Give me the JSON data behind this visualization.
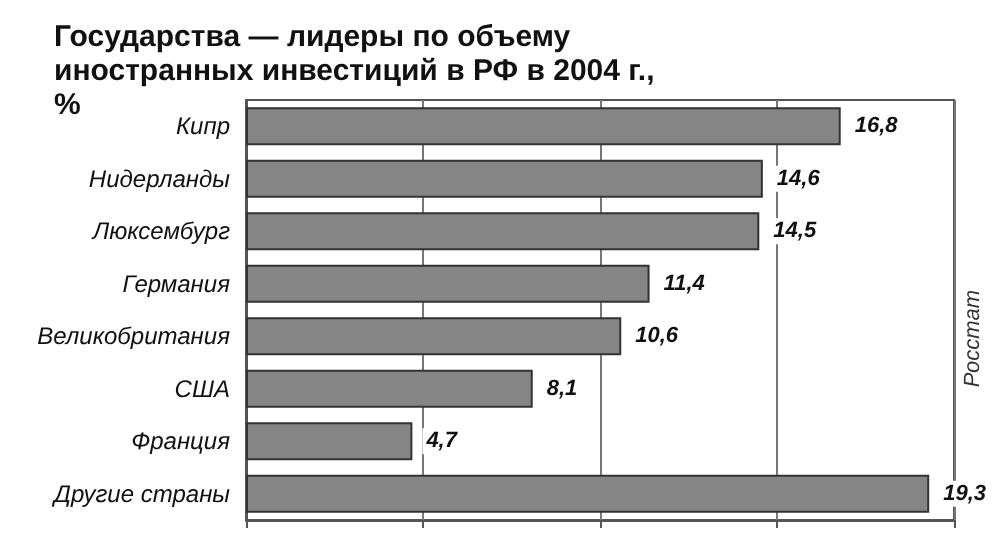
{
  "chart_data": {
    "type": "bar",
    "orientation": "horizontal",
    "title": "Государства — лидеры по объему иностранных инвестиций в РФ в 2004 г., %",
    "categories": [
      "Кипр",
      "Нидерланды",
      "Люксембург",
      "Германия",
      "Великобритания",
      "США",
      "Франция",
      "Другие страны"
    ],
    "values": [
      16.8,
      14.6,
      14.5,
      11.4,
      10.6,
      8.1,
      4.7,
      19.3
    ],
    "value_labels": [
      "16,8",
      "14,6",
      "14,5",
      "11,4",
      "10,6",
      "8,1",
      "4,7",
      "19,3"
    ],
    "color": "#858585",
    "xlim": [
      0,
      20
    ],
    "xticks": [
      {
        "value": 0,
        "label": null
      },
      {
        "value": 5,
        "label": null
      },
      {
        "value": 10,
        "label": null
      },
      {
        "value": 15,
        "label": null
      },
      {
        "value": 20,
        "label": null
      }
    ],
    "grid": "x",
    "tick_labels": "y",
    "annotations": [
      "Росстат"
    ]
  }
}
